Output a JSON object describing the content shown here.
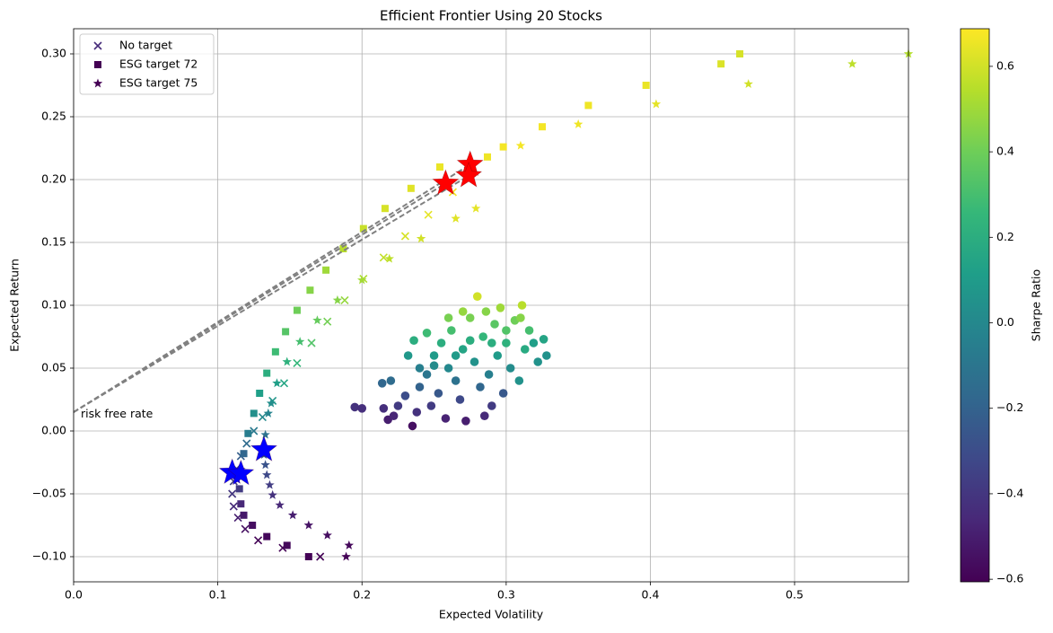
{
  "chart_data": {
    "type": "scatter",
    "title": "Efficient Frontier Using 20 Stocks",
    "x_label": "Expected Volatility",
    "y_label": "Expected Return",
    "colorbar_label": "Sharpe Ratio",
    "colormap": "viridis",
    "grid": true,
    "legend_position": "upper left",
    "xlim": [
      0,
      0.579
    ],
    "ylim": [
      -0.12,
      0.32
    ],
    "clim": [
      -0.606,
      0.688
    ],
    "xticks": [
      {
        "value": 0,
        "label": "0.0"
      },
      0.1,
      0.2,
      0.3,
      0.4,
      0.5
    ],
    "yticks": [
      {
        "value": -0.1,
        "label": "−0.10"
      },
      {
        "value": -0.05,
        "label": "−0.05"
      },
      {
        "value": 0,
        "label": "0.00"
      },
      {
        "value": 0.05,
        "label": "0.05"
      },
      {
        "value": 0.1,
        "label": "0.10"
      },
      {
        "value": 0.15,
        "label": "0.15"
      },
      {
        "value": 0.2,
        "label": "0.20"
      },
      {
        "value": 0.25,
        "label": "0.25"
      },
      {
        "value": 0.3,
        "label": "0.30"
      }
    ],
    "cticks": [
      {
        "value": -0.6,
        "label": "−0.6"
      },
      {
        "value": -0.4,
        "label": "−0.4"
      },
      {
        "value": -0.2,
        "label": "−0.2"
      },
      {
        "value": 0,
        "label": "0.0"
      },
      0.2,
      0.4,
      0.6
    ],
    "risk_free_rate": 0.015,
    "annotation": {
      "text": "risk free rate",
      "x": 0.005,
      "y": 0.009
    },
    "random_portfolios": {
      "x": [
        0.195,
        0.2,
        0.215,
        0.218,
        0.222,
        0.225,
        0.23,
        0.235,
        0.238,
        0.24,
        0.245,
        0.248,
        0.25,
        0.253,
        0.255,
        0.258,
        0.26,
        0.262,
        0.265,
        0.268,
        0.27,
        0.272,
        0.275,
        0.278,
        0.28,
        0.282,
        0.284,
        0.286,
        0.288,
        0.29,
        0.292,
        0.294,
        0.296,
        0.298,
        0.3,
        0.303,
        0.306,
        0.309,
        0.311,
        0.313,
        0.316,
        0.319,
        0.322,
        0.326,
        0.328,
        0.232,
        0.236,
        0.22,
        0.214,
        0.245,
        0.26,
        0.27,
        0.285,
        0.3,
        0.31,
        0.25,
        0.275,
        0.29,
        0.265,
        0.24
      ],
      "y": [
        0.019,
        0.018,
        0.018,
        0.009,
        0.012,
        0.02,
        0.028,
        0.004,
        0.015,
        0.035,
        0.045,
        0.02,
        0.06,
        0.03,
        0.07,
        0.01,
        0.05,
        0.08,
        0.04,
        0.025,
        0.065,
        0.008,
        0.09,
        0.055,
        0.107,
        0.035,
        0.075,
        0.095,
        0.045,
        0.02,
        0.085,
        0.06,
        0.098,
        0.03,
        0.07,
        0.05,
        0.088,
        0.04,
        0.1,
        0.065,
        0.08,
        0.07,
        0.055,
        0.073,
        0.06,
        0.06,
        0.072,
        0.04,
        0.038,
        0.078,
        0.09,
        0.095,
        0.012,
        0.08,
        0.09,
        0.052,
        0.072,
        0.07,
        0.06,
        0.05
      ],
      "c": [
        -0.42,
        -0.43,
        -0.43,
        -0.5,
        -0.47,
        -0.38,
        -0.3,
        -0.55,
        -0.42,
        -0.2,
        -0.1,
        -0.38,
        0.1,
        -0.25,
        0.2,
        -0.48,
        0.0,
        0.3,
        -0.12,
        -0.32,
        0.15,
        -0.5,
        0.42,
        0.05,
        0.6,
        -0.18,
        0.25,
        0.45,
        -0.05,
        -0.38,
        0.35,
        0.1,
        0.5,
        -0.25,
        0.22,
        0.02,
        0.4,
        0.05,
        0.55,
        0.18,
        0.3,
        0.12,
        0.05,
        0.15,
        0.05,
        0.08,
        0.2,
        -0.15,
        -0.18,
        0.28,
        0.42,
        0.48,
        -0.45,
        0.33,
        0.45,
        0.02,
        0.2,
        0.2,
        0.1,
        -0.05
      ]
    },
    "series": [
      {
        "name": "No target",
        "marker": "x",
        "color": "#472c7a",
        "x": [
          0.171,
          0.145,
          0.128,
          0.119,
          0.114,
          0.111,
          0.11,
          0.111,
          0.113,
          0.116,
          0.12,
          0.125,
          0.131,
          0.138,
          0.146,
          0.155,
          0.165,
          0.176,
          0.188,
          0.201,
          0.215,
          0.23,
          0.246,
          0.263
        ],
        "y": [
          -0.1,
          -0.093,
          -0.087,
          -0.078,
          -0.069,
          -0.06,
          -0.05,
          -0.04,
          -0.03,
          -0.02,
          -0.01,
          0.0,
          0.011,
          0.024,
          0.038,
          0.054,
          0.07,
          0.087,
          0.104,
          0.121,
          0.138,
          0.155,
          0.172,
          0.19
        ],
        "c": [
          -0.6,
          -0.6,
          -0.6,
          -0.55,
          -0.5,
          -0.45,
          -0.4,
          -0.35,
          -0.3,
          -0.22,
          -0.15,
          -0.08,
          0.0,
          0.07,
          0.16,
          0.25,
          0.33,
          0.41,
          0.48,
          0.53,
          0.57,
          0.61,
          0.64,
          0.67
        ]
      },
      {
        "name": "ESG target 72",
        "marker": "s",
        "color": "#440154",
        "x": [
          0.163,
          0.148,
          0.134,
          0.124,
          0.118,
          0.116,
          0.115,
          0.116,
          0.118,
          0.121,
          0.125,
          0.129,
          0.134,
          0.14,
          0.147,
          0.155,
          0.164,
          0.175,
          0.187,
          0.201,
          0.216,
          0.234,
          0.254,
          0.287,
          0.298,
          0.325,
          0.357,
          0.397,
          0.449,
          0.462
        ],
        "y": [
          -0.1,
          -0.091,
          -0.084,
          -0.075,
          -0.067,
          -0.058,
          -0.046,
          -0.034,
          -0.018,
          -0.002,
          0.014,
          0.03,
          0.046,
          0.063,
          0.079,
          0.096,
          0.112,
          0.128,
          0.145,
          0.161,
          0.177,
          0.193,
          0.21,
          0.218,
          0.226,
          0.242,
          0.259,
          0.275,
          0.292,
          0.3
        ],
        "c": [
          -0.6,
          -0.58,
          -0.58,
          -0.56,
          -0.52,
          -0.46,
          -0.38,
          -0.3,
          -0.18,
          -0.06,
          0.04,
          0.12,
          0.2,
          0.28,
          0.34,
          0.4,
          0.45,
          0.5,
          0.55,
          0.58,
          0.61,
          0.63,
          0.65,
          0.66,
          0.67,
          0.67,
          0.66,
          0.65,
          0.62,
          0.61
        ]
      },
      {
        "name": "ESG target 75",
        "marker": "*",
        "color": "#440154",
        "x": [
          0.189,
          0.191,
          0.176,
          0.163,
          0.152,
          0.143,
          0.138,
          0.136,
          0.134,
          0.133,
          0.132,
          0.133,
          0.135,
          0.137,
          0.141,
          0.148,
          0.157,
          0.169,
          0.183,
          0.2,
          0.219,
          0.241,
          0.265,
          0.279,
          0.31,
          0.35,
          0.404,
          0.468,
          0.54,
          0.579
        ],
        "y": [
          -0.1,
          -0.091,
          -0.083,
          -0.075,
          -0.067,
          -0.059,
          -0.051,
          -0.043,
          -0.035,
          -0.027,
          -0.019,
          -0.003,
          0.014,
          0.022,
          0.038,
          0.055,
          0.071,
          0.088,
          0.104,
          0.12,
          0.137,
          0.153,
          0.169,
          0.177,
          0.227,
          0.244,
          0.26,
          0.276,
          0.292,
          0.3
        ],
        "c": [
          -0.6,
          -0.58,
          -0.56,
          -0.54,
          -0.5,
          -0.46,
          -0.42,
          -0.37,
          -0.32,
          -0.27,
          -0.22,
          -0.12,
          -0.02,
          0.03,
          0.12,
          0.22,
          0.3,
          0.38,
          0.45,
          0.51,
          0.56,
          0.6,
          0.63,
          0.64,
          0.67,
          0.66,
          0.64,
          0.6,
          0.56,
          0.54
        ]
      }
    ],
    "max_sharpe": {
      "x": [
        0.275,
        0.274,
        0.258
      ],
      "y": [
        0.212,
        0.203,
        0.197
      ],
      "color": "#ff0000"
    },
    "min_volatility": {
      "x": [
        0.11,
        0.116,
        0.132
      ],
      "y": [
        -0.033,
        -0.034,
        -0.015
      ],
      "color": "#0000ff"
    }
  }
}
